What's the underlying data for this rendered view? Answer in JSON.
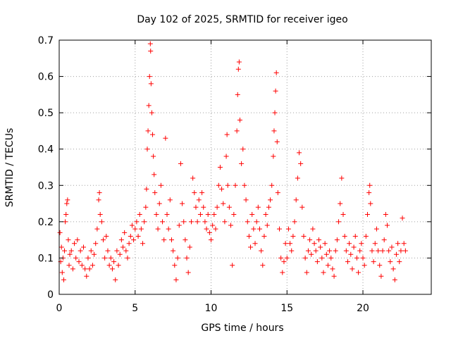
{
  "chart_data": {
    "type": "scatter",
    "title": "Day 102 of 2025, SRMTID for receiver igeo",
    "xlabel": "GPS time / hours",
    "ylabel": "SRMTID / TECUs",
    "xlim": [
      0,
      24.5
    ],
    "ylim": [
      0,
      0.7
    ],
    "xticks": [
      0,
      5,
      10,
      15,
      20
    ],
    "yticks": [
      0,
      0.1,
      0.2,
      0.3,
      0.4,
      0.5,
      0.6,
      0.7
    ],
    "grid": true,
    "marker": "+",
    "color": "#ff0000",
    "series": [
      {
        "name": "SRMTID",
        "points": [
          [
            0.05,
            0.17
          ],
          [
            0.1,
            0.09
          ],
          [
            0.15,
            0.13
          ],
          [
            0.2,
            0.06
          ],
          [
            0.25,
            0.1
          ],
          [
            0.3,
            0.04
          ],
          [
            0.35,
            0.12
          ],
          [
            0.4,
            0.2
          ],
          [
            0.45,
            0.22
          ],
          [
            0.5,
            0.25
          ],
          [
            0.55,
            0.26
          ],
          [
            0.6,
            0.15
          ],
          [
            0.65,
            0.08
          ],
          [
            0.7,
            0.11
          ],
          [
            0.8,
            0.12
          ],
          [
            0.9,
            0.07
          ],
          [
            1.0,
            0.14
          ],
          [
            1.1,
            0.1
          ],
          [
            1.2,
            0.15
          ],
          [
            1.3,
            0.09
          ],
          [
            1.4,
            0.12
          ],
          [
            1.5,
            0.08
          ],
          [
            1.6,
            0.13
          ],
          [
            1.7,
            0.07
          ],
          [
            1.8,
            0.05
          ],
          [
            1.9,
            0.1
          ],
          [
            2.0,
            0.07
          ],
          [
            2.1,
            0.12
          ],
          [
            2.2,
            0.08
          ],
          [
            2.3,
            0.11
          ],
          [
            2.4,
            0.14
          ],
          [
            2.5,
            0.18
          ],
          [
            2.6,
            0.26
          ],
          [
            2.65,
            0.28
          ],
          [
            2.7,
            0.22
          ],
          [
            2.8,
            0.2
          ],
          [
            2.9,
            0.15
          ],
          [
            3.0,
            0.1
          ],
          [
            3.1,
            0.16
          ],
          [
            3.2,
            0.12
          ],
          [
            3.3,
            0.08
          ],
          [
            3.4,
            0.1
          ],
          [
            3.5,
            0.07
          ],
          [
            3.6,
            0.09
          ],
          [
            3.7,
            0.04
          ],
          [
            3.8,
            0.12
          ],
          [
            3.9,
            0.08
          ],
          [
            4.0,
            0.11
          ],
          [
            4.1,
            0.15
          ],
          [
            4.2,
            0.13
          ],
          [
            4.3,
            0.17
          ],
          [
            4.4,
            0.12
          ],
          [
            4.5,
            0.1
          ],
          [
            4.6,
            0.14
          ],
          [
            4.7,
            0.16
          ],
          [
            4.8,
            0.19
          ],
          [
            4.9,
            0.15
          ],
          [
            5.0,
            0.18
          ],
          [
            5.1,
            0.2
          ],
          [
            5.2,
            0.16
          ],
          [
            5.3,
            0.22
          ],
          [
            5.4,
            0.18
          ],
          [
            5.5,
            0.14
          ],
          [
            5.6,
            0.2
          ],
          [
            5.7,
            0.24
          ],
          [
            5.75,
            0.29
          ],
          [
            5.8,
            0.4
          ],
          [
            5.85,
            0.45
          ],
          [
            5.9,
            0.52
          ],
          [
            5.95,
            0.6
          ],
          [
            6.0,
            0.69
          ],
          [
            6.02,
            0.67
          ],
          [
            6.05,
            0.58
          ],
          [
            6.1,
            0.5
          ],
          [
            6.15,
            0.44
          ],
          [
            6.2,
            0.38
          ],
          [
            6.25,
            0.33
          ],
          [
            6.3,
            0.28
          ],
          [
            6.4,
            0.22
          ],
          [
            6.5,
            0.18
          ],
          [
            6.6,
            0.25
          ],
          [
            6.7,
            0.3
          ],
          [
            6.8,
            0.2
          ],
          [
            6.9,
            0.15
          ],
          [
            7.0,
            0.43
          ],
          [
            7.1,
            0.22
          ],
          [
            7.2,
            0.18
          ],
          [
            7.3,
            0.26
          ],
          [
            7.4,
            0.15
          ],
          [
            7.5,
            0.12
          ],
          [
            7.6,
            0.08
          ],
          [
            7.7,
            0.04
          ],
          [
            7.8,
            0.1
          ],
          [
            7.9,
            0.19
          ],
          [
            8.0,
            0.36
          ],
          [
            8.1,
            0.25
          ],
          [
            8.2,
            0.2
          ],
          [
            8.3,
            0.15
          ],
          [
            8.4,
            0.1
          ],
          [
            8.5,
            0.06
          ],
          [
            8.6,
            0.13
          ],
          [
            8.7,
            0.2
          ],
          [
            8.8,
            0.32
          ],
          [
            8.9,
            0.28
          ],
          [
            9.0,
            0.24
          ],
          [
            9.1,
            0.2
          ],
          [
            9.2,
            0.26
          ],
          [
            9.3,
            0.22
          ],
          [
            9.4,
            0.28
          ],
          [
            9.5,
            0.24
          ],
          [
            9.6,
            0.2
          ],
          [
            9.7,
            0.18
          ],
          [
            9.8,
            0.22
          ],
          [
            9.9,
            0.17
          ],
          [
            10.0,
            0.15
          ],
          [
            10.1,
            0.19
          ],
          [
            10.2,
            0.22
          ],
          [
            10.3,
            0.18
          ],
          [
            10.4,
            0.24
          ],
          [
            10.5,
            0.3
          ],
          [
            10.6,
            0.35
          ],
          [
            10.7,
            0.29
          ],
          [
            10.8,
            0.25
          ],
          [
            10.9,
            0.2
          ],
          [
            11.0,
            0.38
          ],
          [
            11.05,
            0.44
          ],
          [
            11.1,
            0.3
          ],
          [
            11.2,
            0.24
          ],
          [
            11.3,
            0.19
          ],
          [
            11.4,
            0.08
          ],
          [
            11.5,
            0.22
          ],
          [
            11.6,
            0.3
          ],
          [
            11.7,
            0.45
          ],
          [
            11.75,
            0.55
          ],
          [
            11.8,
            0.62
          ],
          [
            11.85,
            0.64
          ],
          [
            11.9,
            0.48
          ],
          [
            12.0,
            0.36
          ],
          [
            12.1,
            0.4
          ],
          [
            12.2,
            0.3
          ],
          [
            12.3,
            0.26
          ],
          [
            12.4,
            0.2
          ],
          [
            12.5,
            0.16
          ],
          [
            12.6,
            0.13
          ],
          [
            12.7,
            0.22
          ],
          [
            12.8,
            0.18
          ],
          [
            12.9,
            0.14
          ],
          [
            13.0,
            0.2
          ],
          [
            13.1,
            0.24
          ],
          [
            13.2,
            0.18
          ],
          [
            13.3,
            0.12
          ],
          [
            13.4,
            0.08
          ],
          [
            13.5,
            0.16
          ],
          [
            13.6,
            0.22
          ],
          [
            13.7,
            0.19
          ],
          [
            13.8,
            0.24
          ],
          [
            13.9,
            0.26
          ],
          [
            14.0,
            0.3
          ],
          [
            14.1,
            0.38
          ],
          [
            14.15,
            0.45
          ],
          [
            14.2,
            0.5
          ],
          [
            14.25,
            0.56
          ],
          [
            14.3,
            0.61
          ],
          [
            14.35,
            0.42
          ],
          [
            14.4,
            0.28
          ],
          [
            14.5,
            0.18
          ],
          [
            14.6,
            0.1
          ],
          [
            14.7,
            0.06
          ],
          [
            14.8,
            0.09
          ],
          [
            14.9,
            0.14
          ],
          [
            15.0,
            0.1
          ],
          [
            15.1,
            0.18
          ],
          [
            15.2,
            0.14
          ],
          [
            15.3,
            0.12
          ],
          [
            15.4,
            0.16
          ],
          [
            15.5,
            0.2
          ],
          [
            15.6,
            0.26
          ],
          [
            15.7,
            0.32
          ],
          [
            15.8,
            0.39
          ],
          [
            15.9,
            0.36
          ],
          [
            16.0,
            0.24
          ],
          [
            16.1,
            0.16
          ],
          [
            16.2,
            0.1
          ],
          [
            16.3,
            0.06
          ],
          [
            16.4,
            0.12
          ],
          [
            16.5,
            0.15
          ],
          [
            16.6,
            0.11
          ],
          [
            16.7,
            0.18
          ],
          [
            16.8,
            0.14
          ],
          [
            16.9,
            0.12
          ],
          [
            17.0,
            0.09
          ],
          [
            17.1,
            0.15
          ],
          [
            17.2,
            0.13
          ],
          [
            17.3,
            0.1
          ],
          [
            17.4,
            0.06
          ],
          [
            17.5,
            0.14
          ],
          [
            17.6,
            0.11
          ],
          [
            17.7,
            0.08
          ],
          [
            17.8,
            0.12
          ],
          [
            17.9,
            0.1
          ],
          [
            18.0,
            0.07
          ],
          [
            18.1,
            0.05
          ],
          [
            18.2,
            0.12
          ],
          [
            18.3,
            0.15
          ],
          [
            18.4,
            0.2
          ],
          [
            18.5,
            0.25
          ],
          [
            18.6,
            0.32
          ],
          [
            18.7,
            0.22
          ],
          [
            18.8,
            0.16
          ],
          [
            18.9,
            0.12
          ],
          [
            19.0,
            0.09
          ],
          [
            19.1,
            0.14
          ],
          [
            19.2,
            0.11
          ],
          [
            19.3,
            0.07
          ],
          [
            19.4,
            0.13
          ],
          [
            19.5,
            0.16
          ],
          [
            19.6,
            0.1
          ],
          [
            19.7,
            0.06
          ],
          [
            19.8,
            0.12
          ],
          [
            19.9,
            0.14
          ],
          [
            20.0,
            0.1
          ],
          [
            20.1,
            0.08
          ],
          [
            20.2,
            0.16
          ],
          [
            20.3,
            0.22
          ],
          [
            20.4,
            0.28
          ],
          [
            20.45,
            0.3
          ],
          [
            20.5,
            0.25
          ],
          [
            20.6,
            0.12
          ],
          [
            20.7,
            0.09
          ],
          [
            20.8,
            0.14
          ],
          [
            20.9,
            0.18
          ],
          [
            21.0,
            0.12
          ],
          [
            21.1,
            0.08
          ],
          [
            21.2,
            0.05
          ],
          [
            21.3,
            0.12
          ],
          [
            21.4,
            0.15
          ],
          [
            21.5,
            0.22
          ],
          [
            21.6,
            0.19
          ],
          [
            21.7,
            0.12
          ],
          [
            21.8,
            0.09
          ],
          [
            21.9,
            0.13
          ],
          [
            22.0,
            0.07
          ],
          [
            22.1,
            0.04
          ],
          [
            22.2,
            0.11
          ],
          [
            22.3,
            0.14
          ],
          [
            22.4,
            0.09
          ],
          [
            22.5,
            0.12
          ],
          [
            22.6,
            0.21
          ],
          [
            22.7,
            0.14
          ],
          [
            22.8,
            0.12
          ]
        ]
      }
    ]
  }
}
